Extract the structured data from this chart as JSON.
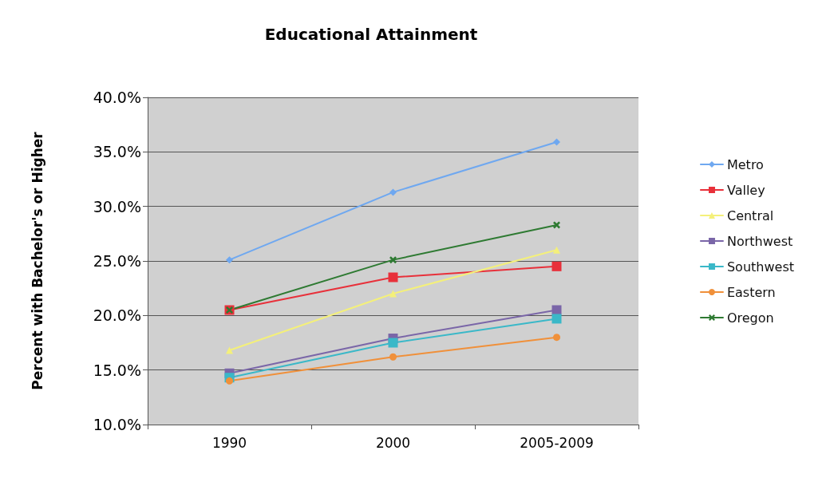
{
  "chart_data": {
    "type": "line",
    "title": "Educational Attainment",
    "ylabel": "Percent with Bachelor's or Higher",
    "categories": [
      "1990",
      "2000",
      "2005-2009"
    ],
    "series": [
      {
        "name": "Metro",
        "color": "#6fa8f0",
        "marker": "diamond",
        "values": [
          25.1,
          31.3,
          35.9
        ]
      },
      {
        "name": "Valley",
        "color": "#e8303a",
        "marker": "square",
        "values": [
          20.5,
          23.5,
          24.5
        ]
      },
      {
        "name": "Central",
        "color": "#f4f07a",
        "marker": "triangle",
        "values": [
          16.8,
          22.0,
          26.0
        ]
      },
      {
        "name": "Northwest",
        "color": "#7a66a8",
        "marker": "square",
        "values": [
          14.7,
          17.9,
          20.5
        ]
      },
      {
        "name": "Southwest",
        "color": "#3ab8c8",
        "marker": "square",
        "values": [
          14.3,
          17.5,
          19.7
        ]
      },
      {
        "name": "Eastern",
        "color": "#f0903a",
        "marker": "circle",
        "values": [
          14.0,
          16.2,
          18.0
        ]
      },
      {
        "name": "Oregon",
        "color": "#2e7a32",
        "marker": "cross",
        "values": [
          20.5,
          25.1,
          28.3
        ]
      }
    ],
    "ylim": [
      10,
      40
    ],
    "yticks": [
      {
        "value": 10,
        "label": "10.0%"
      },
      {
        "value": 15,
        "label": "15.0%"
      },
      {
        "value": 20,
        "label": "20.0%"
      },
      {
        "value": 25,
        "label": "25.0%"
      },
      {
        "value": 30,
        "label": "30.0%"
      },
      {
        "value": 35,
        "label": "35.0%"
      },
      {
        "value": 40,
        "label": "40.0%"
      }
    ],
    "grid": "y",
    "legend": "right",
    "line_style": "solid"
  }
}
